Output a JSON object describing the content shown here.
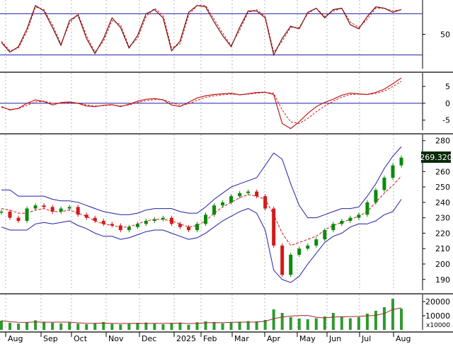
{
  "colors": {
    "background": "#ffffff",
    "panel_border": "#000000",
    "gridline": "#9a9a9a",
    "price_up": "#0b8a0b",
    "price_down": "#d11a1a",
    "bollinger": "#1f1fa8",
    "ma_dashed": "#d11a1a",
    "stoch_k": "#7a1010",
    "stoch_d": "#d11a1a",
    "macd": "#c01818",
    "macd_signal": "#d11a1a",
    "volume": "#2f9a2f",
    "volume_ma": "#9a2a2a",
    "ref_line": "#1f1fa8",
    "price_badge_bg": "#0a2a0a",
    "price_badge_text": "#ffffff"
  },
  "chart_data": [
    {
      "type": "line",
      "panel": "stochastic",
      "ylim": [
        0,
        100
      ],
      "y_ticks": [
        "50"
      ],
      "reference_lines": [
        20,
        80
      ],
      "series": [
        {
          "values": [
            38,
            24,
            32,
            58,
            92,
            84,
            60,
            34,
            70,
            78,
            44,
            22,
            44,
            74,
            60,
            30,
            48,
            80,
            86,
            74,
            26,
            40,
            82,
            92,
            90,
            68,
            48,
            32,
            60,
            84,
            84,
            74,
            20,
            44,
            62,
            58,
            82,
            88,
            74,
            86,
            88,
            64,
            58,
            76,
            90,
            88,
            82,
            86
          ]
        },
        {
          "values": [
            40,
            26,
            30,
            54,
            90,
            86,
            64,
            36,
            66,
            80,
            48,
            24,
            40,
            70,
            64,
            32,
            44,
            76,
            88,
            78,
            30,
            36,
            78,
            92,
            92,
            72,
            52,
            34,
            56,
            82,
            86,
            76,
            24,
            40,
            60,
            60,
            80,
            88,
            76,
            84,
            88,
            68,
            60,
            72,
            88,
            88,
            84,
            86
          ]
        }
      ]
    },
    {
      "type": "line",
      "panel": "macd",
      "ylim": [
        -8,
        9
      ],
      "y_ticks": [
        "5",
        "0",
        "-5"
      ],
      "reference_lines": [
        0
      ],
      "series": [
        {
          "values": [
            -1,
            -2,
            -1.5,
            0,
            1,
            0.5,
            -0.5,
            0.2,
            0.4,
            0,
            -0.8,
            -1,
            -0.6,
            -0.4,
            -1,
            -0.3,
            0.6,
            1.2,
            1.4,
            1,
            -0.5,
            -1,
            0.3,
            1.6,
            2.2,
            2.6,
            2.8,
            3,
            2.5,
            2.8,
            3.2,
            3.3,
            2.6,
            -6,
            -7.5,
            -5.5,
            -3,
            -1,
            0.3,
            1.2,
            2.4,
            3,
            2.8,
            2.6,
            3.2,
            4.2,
            5.8,
            7.5
          ]
        },
        {
          "values": [
            -1.2,
            -1.8,
            -1.6,
            -0.6,
            0.4,
            0.6,
            0,
            0,
            0.2,
            0.1,
            -0.5,
            -0.8,
            -0.7,
            -0.5,
            -0.8,
            -0.5,
            0.2,
            0.8,
            1.1,
            1.1,
            0.2,
            -0.6,
            -0.2,
            0.9,
            1.7,
            2.2,
            2.5,
            2.7,
            2.6,
            2.7,
            3,
            3.2,
            3,
            -2,
            -5.5,
            -6,
            -4.5,
            -2.5,
            -0.8,
            0.6,
            1.8,
            2.6,
            2.7,
            2.6,
            2.9,
            3.6,
            5,
            6.5
          ]
        }
      ]
    },
    {
      "type": "line",
      "panel": "price",
      "ylim": [
        183,
        284
      ],
      "y_ticks": [
        "280",
        "270",
        "260",
        "250",
        "240",
        "230",
        "220",
        "210",
        "200",
        "190"
      ],
      "last_price_label": "269.320",
      "series": [
        {
          "values": [
            234,
            230,
            228,
            236,
            238,
            237,
            234,
            236,
            237,
            232,
            230,
            228,
            226,
            225,
            222,
            224,
            226,
            228,
            229,
            230,
            226,
            224,
            222,
            226,
            232,
            238,
            240,
            244,
            246,
            247,
            244,
            236,
            212,
            193,
            206,
            210,
            212,
            216,
            222,
            226,
            228,
            230,
            232,
            240,
            248,
            256,
            264,
            269
          ]
        },
        {
          "values": [
            248,
            248,
            244,
            244,
            244,
            244,
            242,
            241,
            241,
            240,
            238,
            236,
            234,
            233,
            232,
            232,
            233,
            235,
            236,
            236,
            236,
            234,
            233,
            233,
            237,
            242,
            246,
            250,
            252,
            254,
            256,
            264,
            272,
            268,
            252,
            238,
            230,
            230,
            232,
            234,
            236,
            236,
            237,
            244,
            252,
            262,
            270,
            276
          ]
        },
        {
          "values": [
            224,
            222,
            222,
            222,
            226,
            227,
            226,
            227,
            228,
            225,
            223,
            220,
            218,
            218,
            216,
            217,
            219,
            221,
            222,
            222,
            220,
            218,
            216,
            217,
            220,
            224,
            228,
            231,
            234,
            236,
            233,
            222,
            196,
            190,
            188,
            192,
            200,
            207,
            214,
            218,
            220,
            224,
            226,
            226,
            228,
            232,
            234,
            242
          ]
        },
        {
          "values": [
            236,
            235,
            233,
            233,
            235,
            236,
            234,
            234,
            235,
            233,
            231,
            228,
            226,
            225,
            224,
            224,
            226,
            228,
            229,
            229,
            228,
            226,
            224,
            225,
            228,
            233,
            237,
            240,
            243,
            245,
            244,
            242,
            232,
            220,
            212,
            214,
            216,
            218,
            222,
            225,
            227,
            229,
            231,
            234,
            240,
            246,
            251,
            257
          ]
        }
      ]
    },
    {
      "type": "bar",
      "panel": "volume",
      "ylim": [
        0,
        25000
      ],
      "y_ticks": [
        "20000",
        "10000"
      ],
      "unit_label": "x10000",
      "series": [
        {
          "values": [
            6500,
            5000,
            4500,
            5200,
            6800,
            5800,
            5000,
            4600,
            5200,
            4400,
            4000,
            4800,
            5600,
            4200,
            3800,
            4400,
            5000,
            5200,
            4600,
            4000,
            4800,
            5200,
            3600,
            5400,
            6000,
            5600,
            4600,
            5200,
            5800,
            6200,
            6000,
            7000,
            14500,
            12000,
            9000,
            8000,
            7500,
            8200,
            9500,
            12000,
            9000,
            8200,
            9000,
            11500,
            13500,
            16000,
            22000,
            15000
          ]
        }
      ]
    },
    {
      "type": "line",
      "panel": "x-axis",
      "categories": [
        "Aug",
        "Sep",
        "Oct",
        "Nov",
        "Dec",
        "2025",
        "Feb",
        "Mar",
        "Apr",
        "May",
        "Jun",
        "Jul",
        "Aug"
      ]
    }
  ]
}
